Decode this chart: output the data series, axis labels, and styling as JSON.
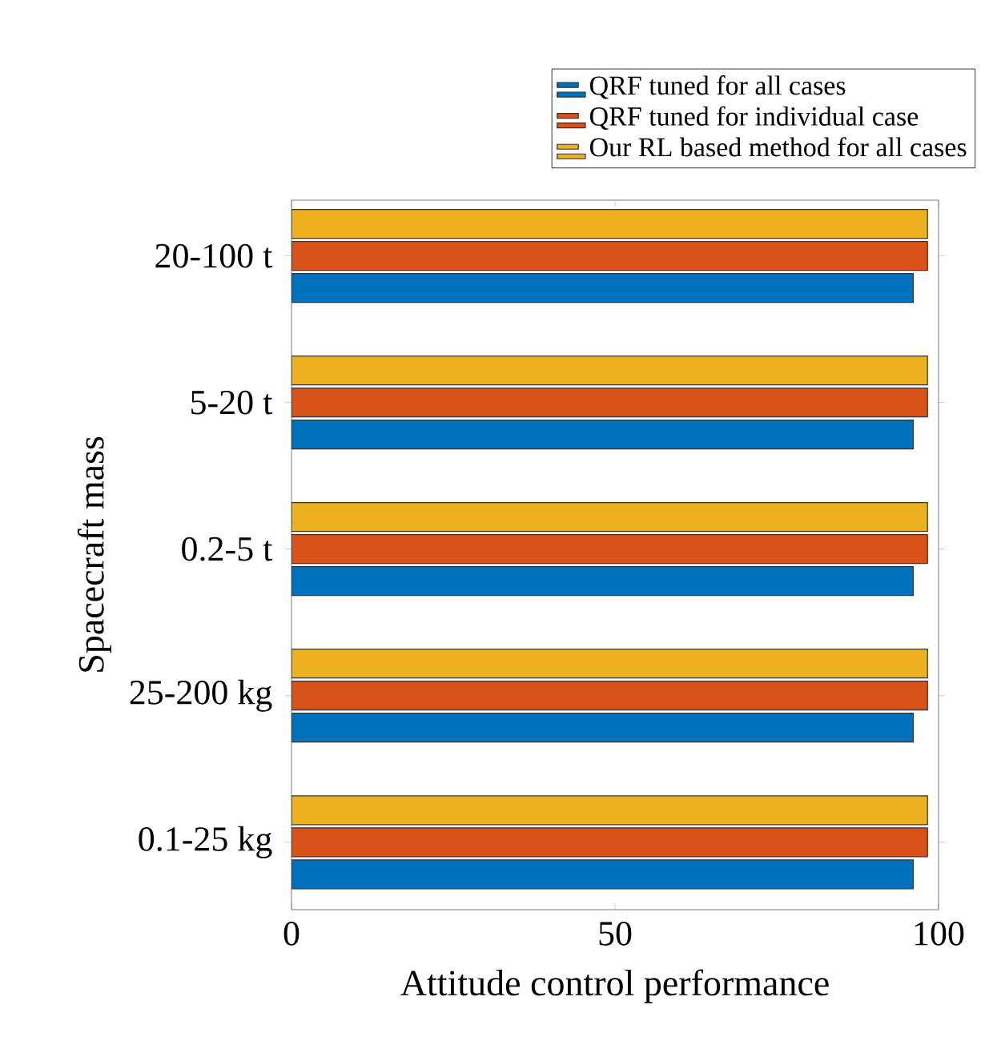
{
  "chart_data": {
    "type": "bar",
    "orientation": "horizontal",
    "xlabel": "Attitude control performance",
    "ylabel": "Spacecraft mass",
    "categories": [
      "20-100 t",
      "5-20 t",
      "0.2-5 t",
      "25-200 kg",
      "0.1-25 kg"
    ],
    "series": [
      {
        "name": "QRF tuned for all cases",
        "color": "#0072bd",
        "values": [
          96.1,
          96.1,
          96.1,
          96.1,
          96.1
        ]
      },
      {
        "name": "QRF tuned for individual case",
        "color": "#d95319",
        "values": [
          98.3,
          98.3,
          98.3,
          98.3,
          98.3
        ]
      },
      {
        "name": "Our RL based method for all cases",
        "color": "#edb120",
        "values": [
          98.3,
          98.3,
          98.3,
          98.3,
          98.3
        ]
      }
    ],
    "xlim": [
      0,
      100
    ],
    "xticks": [
      0,
      50,
      100
    ],
    "legend": "top right",
    "grid": false
  }
}
